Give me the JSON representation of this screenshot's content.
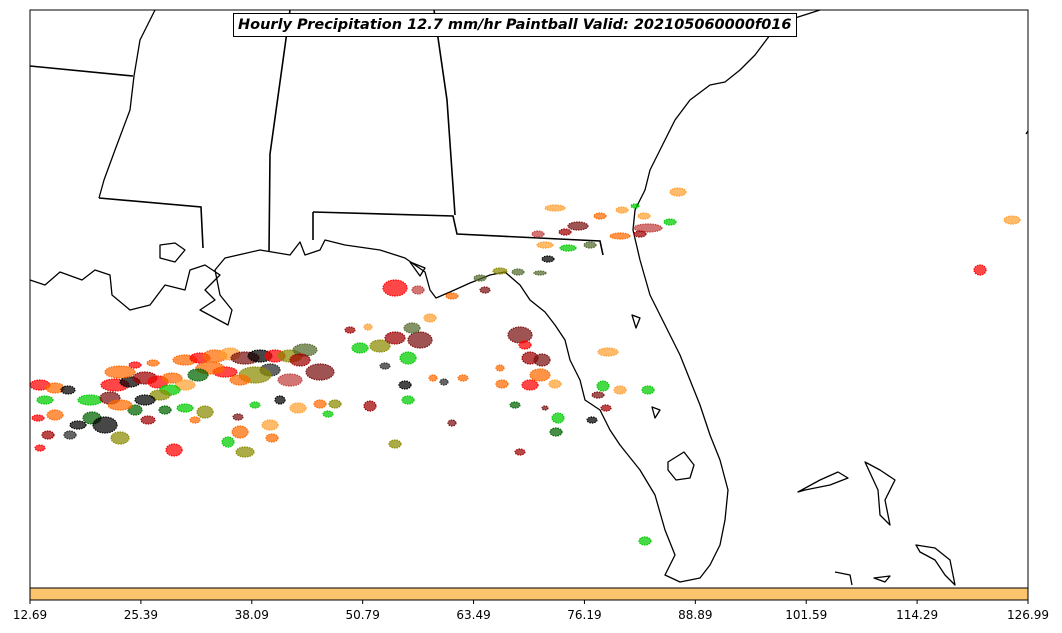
{
  "title": "Hourly Precipitation 12.7 mm/hr Paintball Valid: 202105060000f016",
  "colorbar": {
    "color": "#fdc46e",
    "ticks": [
      "12.69",
      "25.39",
      "38.09",
      "50.79",
      "63.49",
      "76.19",
      "88.89",
      "101.59",
      "114.29",
      "126.99"
    ]
  },
  "member_colors": [
    "#ff0000",
    "#ff6a00",
    "#a00000",
    "#7a1010",
    "#000000",
    "#2a2a2a",
    "#00cc00",
    "#006400",
    "#8b8b00",
    "#ffa030",
    "#556b2f",
    "#c04040"
  ]
}
